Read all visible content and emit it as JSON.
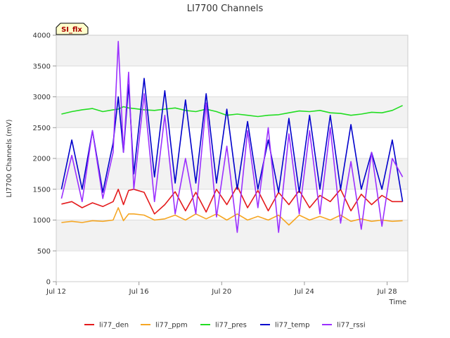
{
  "chart_data": {
    "type": "line",
    "title": "LI7700 Channels",
    "xlabel": "Time",
    "ylabel": "LI7700 Channels (mV)",
    "badge": "SI_flx",
    "x_range_days": [
      "2023-07-12T00:00",
      "2023-07-29T00:00"
    ],
    "x_ticks": [
      {
        "date": "2023-07-12",
        "label": "Jul 12"
      },
      {
        "date": "2023-07-16",
        "label": "Jul 16"
      },
      {
        "date": "2023-07-20",
        "label": "Jul 20"
      },
      {
        "date": "2023-07-24",
        "label": "Jul 24"
      },
      {
        "date": "2023-07-28",
        "label": "Jul 28"
      }
    ],
    "ylim": [
      0,
      4000
    ],
    "y_ticks": [
      0,
      500,
      1000,
      1500,
      2000,
      2500,
      3000,
      3500,
      4000
    ],
    "grid": "horizontal bands",
    "legend_position": "bottom",
    "x_dates": [
      "2023-07-12T06:00",
      "2023-07-12T18:00",
      "2023-07-13T06:00",
      "2023-07-13T18:00",
      "2023-07-14T06:00",
      "2023-07-14T18:00",
      "2023-07-15T00:00",
      "2023-07-15T06:00",
      "2023-07-15T12:00",
      "2023-07-15T18:00",
      "2023-07-16T06:00",
      "2023-07-16T18:00",
      "2023-07-17T06:00",
      "2023-07-17T18:00",
      "2023-07-18T06:00",
      "2023-07-18T18:00",
      "2023-07-19T06:00",
      "2023-07-19T18:00",
      "2023-07-20T06:00",
      "2023-07-20T18:00",
      "2023-07-21T06:00",
      "2023-07-21T18:00",
      "2023-07-22T06:00",
      "2023-07-22T18:00",
      "2023-07-23T06:00",
      "2023-07-23T18:00",
      "2023-07-24T06:00",
      "2023-07-24T18:00",
      "2023-07-25T06:00",
      "2023-07-25T18:00",
      "2023-07-26T06:00",
      "2023-07-26T18:00",
      "2023-07-27T06:00",
      "2023-07-27T18:00",
      "2023-07-28T06:00",
      "2023-07-28T18:00"
    ],
    "series": [
      {
        "name": "li77_den",
        "color": "#e41a1c",
        "values": [
          1260,
          1300,
          1200,
          1280,
          1220,
          1300,
          1500,
          1250,
          1480,
          1500,
          1450,
          1100,
          1250,
          1460,
          1150,
          1450,
          1130,
          1500,
          1250,
          1550,
          1200,
          1480,
          1150,
          1450,
          1250,
          1480,
          1200,
          1400,
          1300,
          1500,
          1150,
          1420,
          1250,
          1400,
          1300,
          1300
        ]
      },
      {
        "name": "li77_ppm",
        "color": "#f5a623",
        "values": [
          960,
          980,
          960,
          990,
          980,
          1000,
          1200,
          990,
          1100,
          1100,
          1080,
          1000,
          1020,
          1080,
          1000,
          1100,
          1020,
          1100,
          1000,
          1100,
          1000,
          1060,
          1000,
          1080,
          920,
          1080,
          1000,
          1060,
          1000,
          1080,
          980,
          1020,
          980,
          1000,
          980,
          990
        ]
      },
      {
        "name": "li77_pres",
        "color": "#22dd22",
        "values": [
          2720,
          2760,
          2790,
          2810,
          2760,
          2790,
          2800,
          2840,
          2820,
          2810,
          2790,
          2780,
          2800,
          2820,
          2780,
          2760,
          2800,
          2760,
          2700,
          2720,
          2700,
          2680,
          2700,
          2710,
          2740,
          2770,
          2760,
          2780,
          2740,
          2730,
          2700,
          2720,
          2750,
          2740,
          2780,
          2860
        ]
      },
      {
        "name": "li77_temp",
        "color": "#0000cc",
        "values": [
          1500,
          2300,
          1500,
          2450,
          1450,
          2250,
          3000,
          2100,
          3200,
          1750,
          3300,
          1700,
          3100,
          1600,
          2950,
          1600,
          3050,
          1600,
          2800,
          1500,
          2600,
          1500,
          2300,
          1450,
          2650,
          1450,
          2700,
          1500,
          2700,
          1500,
          2550,
          1500,
          2100,
          1500,
          2300,
          1300
        ]
      },
      {
        "name": "li77_rssi",
        "color": "#9b30ff",
        "values": [
          1350,
          2050,
          1300,
          2450,
          1350,
          2100,
          3900,
          2100,
          3400,
          1500,
          3050,
          1300,
          2700,
          1100,
          2000,
          1100,
          2900,
          1050,
          2200,
          800,
          2450,
          1200,
          2500,
          800,
          2400,
          1100,
          2450,
          1100,
          2500,
          950,
          1950,
          850,
          2100,
          900,
          2000,
          1700
        ]
      }
    ]
  }
}
